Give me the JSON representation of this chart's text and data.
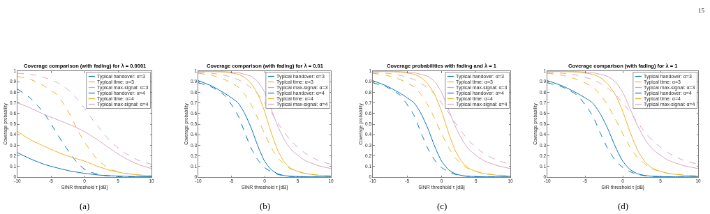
{
  "chart_data": [
    {
      "type": "line",
      "title": "Coverage comparison (with fading) for λ = 0.0001",
      "xlabel": "SINR threshold τ [dB]",
      "ylabel": "Coverage probability",
      "xlim": [
        -10,
        10
      ],
      "xticks": [
        -10,
        -5,
        0,
        5,
        10
      ],
      "ylim": [
        0,
        1
      ],
      "yticks": [
        0,
        0.1,
        0.2,
        0.3,
        0.4,
        0.5,
        0.6,
        0.7,
        0.8,
        0.9,
        1
      ],
      "grid": false,
      "legend": "top right",
      "annotations": [
        "(a)"
      ],
      "x": [
        -10,
        -8,
        -6,
        -4,
        -3,
        -2,
        -1,
        0,
        1,
        2,
        3,
        4,
        6,
        8,
        10
      ],
      "series": [
        {
          "name": "Typical handover: α=3",
          "color": "#0072bd",
          "line_style": "dashed",
          "values": [
            0.83,
            0.74,
            0.6,
            0.4,
            0.3,
            0.21,
            0.13,
            0.075,
            0.045,
            0.027,
            0.015,
            0.009,
            0.004,
            0.002,
            0.001
          ]
        },
        {
          "name": "Typical time: α=3",
          "color": "#edb120",
          "line_style": "dashed",
          "values": [
            0.95,
            0.92,
            0.86,
            0.77,
            0.68,
            0.57,
            0.44,
            0.33,
            0.24,
            0.16,
            0.11,
            0.07,
            0.035,
            0.02,
            0.012
          ]
        },
        {
          "name": "Typical max-signal: α=3",
          "color": "#d8a4c4",
          "line_style": "dashed",
          "values": [
            0.98,
            0.97,
            0.94,
            0.89,
            0.85,
            0.8,
            0.73,
            0.65,
            0.56,
            0.48,
            0.4,
            0.33,
            0.23,
            0.16,
            0.12
          ]
        },
        {
          "name": "Typical handover: α=4",
          "color": "#0072bd",
          "line_style": "solid",
          "values": [
            0.23,
            0.17,
            0.12,
            0.085,
            0.07,
            0.055,
            0.045,
            0.035,
            0.027,
            0.02,
            0.015,
            0.012,
            0.007,
            0.004,
            0.003
          ]
        },
        {
          "name": "Typical time: α=4",
          "color": "#edb120",
          "line_style": "solid",
          "values": [
            0.43,
            0.35,
            0.29,
            0.235,
            0.21,
            0.19,
            0.17,
            0.15,
            0.125,
            0.1,
            0.08,
            0.06,
            0.035,
            0.02,
            0.012
          ]
        },
        {
          "name": "Typical max-signal: α=4",
          "color": "#d8a4c4",
          "line_style": "solid",
          "values": [
            0.7,
            0.65,
            0.59,
            0.54,
            0.515,
            0.49,
            0.46,
            0.43,
            0.39,
            0.35,
            0.305,
            0.26,
            0.18,
            0.12,
            0.08
          ]
        }
      ]
    },
    {
      "type": "line",
      "title": "Coverage comparison (with fading) for λ = 0.01",
      "xlabel": "SINR threshold τ [dB]",
      "ylabel": "Coverage probability",
      "xlim": [
        -10,
        10
      ],
      "xticks": [
        -10,
        -5,
        0,
        5,
        10
      ],
      "ylim": [
        0,
        1
      ],
      "yticks": [
        0,
        0.1,
        0.2,
        0.3,
        0.4,
        0.5,
        0.6,
        0.7,
        0.8,
        0.9,
        1
      ],
      "grid": false,
      "legend": "top right",
      "annotations": [
        "(b)"
      ],
      "x": [
        -10,
        -8,
        -6,
        -4,
        -3,
        -2,
        -1,
        0,
        1,
        2,
        3,
        4,
        6,
        8,
        10
      ],
      "series": [
        {
          "name": "Typical handover: α=3",
          "color": "#0072bd",
          "line_style": "dashed",
          "values": [
            0.89,
            0.85,
            0.77,
            0.58,
            0.42,
            0.27,
            0.16,
            0.09,
            0.05,
            0.025,
            0.012,
            0.006,
            0.002,
            0.001,
            0
          ]
        },
        {
          "name": "Typical time: α=3",
          "color": "#edb120",
          "line_style": "dashed",
          "values": [
            0.98,
            0.96,
            0.92,
            0.85,
            0.78,
            0.68,
            0.55,
            0.41,
            0.28,
            0.18,
            0.12,
            0.075,
            0.035,
            0.02,
            0.012
          ]
        },
        {
          "name": "Typical max-signal: α=3",
          "color": "#d8a4c4",
          "line_style": "dashed",
          "values": [
            0.99,
            0.98,
            0.96,
            0.92,
            0.885,
            0.84,
            0.78,
            0.7,
            0.61,
            0.51,
            0.42,
            0.34,
            0.23,
            0.16,
            0.12
          ]
        },
        {
          "name": "Typical handover: α=4",
          "color": "#0072bd",
          "line_style": "solid",
          "values": [
            0.91,
            0.86,
            0.79,
            0.7,
            0.6,
            0.46,
            0.29,
            0.15,
            0.07,
            0.03,
            0.014,
            0.007,
            0.003,
            0.002,
            0.001
          ]
        },
        {
          "name": "Typical time: α=4",
          "color": "#edb120",
          "line_style": "solid",
          "values": [
            0.995,
            0.995,
            0.99,
            0.97,
            0.94,
            0.88,
            0.78,
            0.62,
            0.42,
            0.25,
            0.14,
            0.08,
            0.035,
            0.018,
            0.01
          ]
        },
        {
          "name": "Typical max-signal: α=4",
          "color": "#d8a4c4",
          "line_style": "solid",
          "values": [
            1,
            1,
            0.995,
            0.985,
            0.97,
            0.95,
            0.9,
            0.8,
            0.64,
            0.48,
            0.35,
            0.26,
            0.16,
            0.11,
            0.08
          ]
        }
      ]
    },
    {
      "type": "line",
      "title": "Coverage probabilities with fading and λ = 1",
      "xlabel": "SINR threshold τ [dB]",
      "ylabel": "Coverage probability",
      "xlim": [
        -10,
        10
      ],
      "xticks": [
        -10,
        -5,
        0,
        5,
        10
      ],
      "ylim": [
        0,
        1
      ],
      "yticks": [
        0,
        0.1,
        0.2,
        0.3,
        0.4,
        0.5,
        0.6,
        0.7,
        0.8,
        0.9,
        1
      ],
      "grid": false,
      "legend": "top right",
      "annotations": [
        "(c)"
      ],
      "x": [
        -10,
        -8,
        -6,
        -4,
        -3,
        -2,
        -1,
        0,
        1,
        2,
        3,
        4,
        6,
        8,
        10
      ],
      "series": [
        {
          "name": "Typical handover: α=3",
          "color": "#0072bd",
          "line_style": "dashed",
          "values": [
            0.89,
            0.85,
            0.77,
            0.58,
            0.42,
            0.27,
            0.16,
            0.09,
            0.05,
            0.025,
            0.012,
            0.006,
            0.002,
            0.001,
            0
          ]
        },
        {
          "name": "Typical time: α=3",
          "color": "#edb120",
          "line_style": "dashed",
          "values": [
            0.98,
            0.96,
            0.92,
            0.85,
            0.78,
            0.68,
            0.55,
            0.41,
            0.28,
            0.18,
            0.12,
            0.075,
            0.035,
            0.02,
            0.012
          ]
        },
        {
          "name": "Typical max-signal: α=3",
          "color": "#d8a4c4",
          "line_style": "dashed",
          "values": [
            0.99,
            0.98,
            0.96,
            0.92,
            0.885,
            0.84,
            0.78,
            0.7,
            0.61,
            0.51,
            0.42,
            0.34,
            0.23,
            0.16,
            0.12
          ]
        },
        {
          "name": "Typical handover: α=4",
          "color": "#0072bd",
          "line_style": "solid",
          "values": [
            0.91,
            0.86,
            0.79,
            0.7,
            0.6,
            0.46,
            0.29,
            0.15,
            0.07,
            0.03,
            0.014,
            0.007,
            0.003,
            0.002,
            0.001
          ]
        },
        {
          "name": "Typical time: α=4",
          "color": "#edb120",
          "line_style": "solid",
          "values": [
            0.995,
            0.995,
            0.99,
            0.97,
            0.94,
            0.88,
            0.78,
            0.62,
            0.42,
            0.25,
            0.14,
            0.08,
            0.035,
            0.018,
            0.01
          ]
        },
        {
          "name": "Typical max-signal: α=4",
          "color": "#d8a4c4",
          "line_style": "solid",
          "values": [
            1,
            1,
            0.995,
            0.985,
            0.97,
            0.95,
            0.9,
            0.8,
            0.64,
            0.48,
            0.35,
            0.26,
            0.16,
            0.11,
            0.08
          ]
        }
      ]
    },
    {
      "type": "line",
      "title": "Coverage comparison (with fading) for λ = 1",
      "xlabel": "SIR threshold τ [dB]",
      "ylabel": "Coverage probability",
      "xlim": [
        -10,
        10
      ],
      "xticks": [
        -10,
        -5,
        0,
        5,
        10
      ],
      "ylim": [
        0,
        1
      ],
      "yticks": [
        0,
        0.1,
        0.2,
        0.3,
        0.4,
        0.5,
        0.6,
        0.7,
        0.8,
        0.9,
        1
      ],
      "grid": false,
      "legend": "top right",
      "annotations": [
        "(d)",
        "15"
      ],
      "x": [
        -10,
        -8,
        -6,
        -4,
        -3,
        -2,
        -1,
        0,
        1,
        2,
        3,
        4,
        6,
        8,
        10
      ],
      "series": [
        {
          "name": "Typical handover: α=3",
          "color": "#0072bd",
          "line_style": "dashed",
          "values": [
            0.89,
            0.85,
            0.77,
            0.58,
            0.42,
            0.27,
            0.16,
            0.09,
            0.05,
            0.025,
            0.012,
            0.006,
            0.002,
            0.001,
            0
          ]
        },
        {
          "name": "Typical time: α=3",
          "color": "#edb120",
          "line_style": "dashed",
          "values": [
            0.98,
            0.96,
            0.92,
            0.85,
            0.78,
            0.68,
            0.55,
            0.41,
            0.28,
            0.18,
            0.12,
            0.075,
            0.035,
            0.02,
            0.012
          ]
        },
        {
          "name": "Typical max-signal: α=3",
          "color": "#d8a4c4",
          "line_style": "dashed",
          "values": [
            0.99,
            0.98,
            0.96,
            0.92,
            0.885,
            0.84,
            0.78,
            0.7,
            0.61,
            0.51,
            0.42,
            0.34,
            0.23,
            0.16,
            0.12
          ]
        },
        {
          "name": "Typical handover: α=4",
          "color": "#0072bd",
          "line_style": "solid",
          "values": [
            0.91,
            0.86,
            0.79,
            0.7,
            0.6,
            0.46,
            0.29,
            0.15,
            0.07,
            0.03,
            0.014,
            0.007,
            0.003,
            0.002,
            0.001
          ]
        },
        {
          "name": "Typical time: α=4",
          "color": "#edb120",
          "line_style": "solid",
          "values": [
            0.995,
            0.995,
            0.99,
            0.97,
            0.94,
            0.88,
            0.78,
            0.62,
            0.42,
            0.25,
            0.14,
            0.08,
            0.035,
            0.018,
            0.01
          ]
        },
        {
          "name": "Typical max-signal: α=4",
          "color": "#d8a4c4",
          "line_style": "solid",
          "values": [
            1,
            1,
            0.995,
            0.985,
            0.97,
            0.95,
            0.9,
            0.8,
            0.64,
            0.48,
            0.35,
            0.26,
            0.16,
            0.11,
            0.08
          ]
        }
      ]
    }
  ]
}
